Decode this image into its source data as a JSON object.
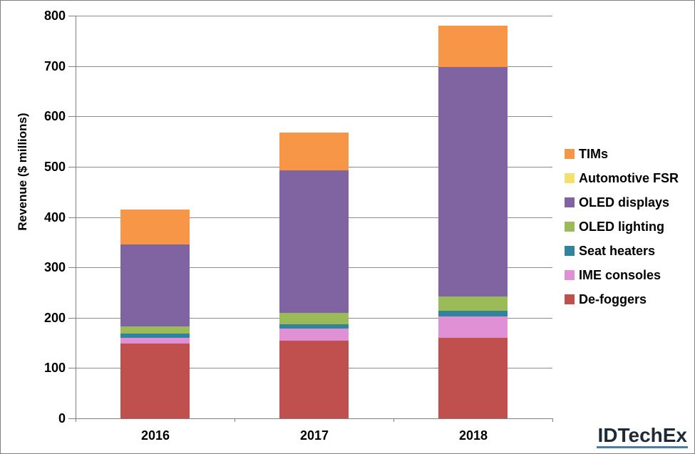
{
  "chart_data": {
    "type": "bar",
    "stacked": true,
    "title": "",
    "xlabel": "",
    "ylabel": "Revenue ($ millions)",
    "categories": [
      "2016",
      "2017",
      "2018"
    ],
    "series": [
      {
        "name": "TIMs",
        "color": "#F79646",
        "values": [
          70,
          75,
          82
        ]
      },
      {
        "name": "Automotive FSR",
        "color": "#F2E16C",
        "values": [
          0,
          0,
          0
        ]
      },
      {
        "name": "OLED displays",
        "color": "#8064A2",
        "values": [
          163,
          284,
          456
        ]
      },
      {
        "name": "OLED lighting",
        "color": "#9BBB59",
        "values": [
          14,
          22,
          28
        ]
      },
      {
        "name": "Seat heaters",
        "color": "#31849B",
        "values": [
          8,
          9,
          11
        ]
      },
      {
        "name": "IME consoles",
        "color": "#E091D5",
        "values": [
          12,
          23,
          43
        ]
      },
      {
        "name": "De-foggers",
        "color": "#C0504D",
        "values": [
          148,
          155,
          160
        ]
      }
    ],
    "series_order_note": "series listed top-of-stack first; stacking bottom-to-top is the reverse order",
    "approx_totals": [
      415,
      568,
      780
    ],
    "ylim": [
      0,
      800
    ],
    "yticks": [
      0,
      100,
      200,
      300,
      400,
      500,
      600,
      700,
      800
    ],
    "grid": "horizontal",
    "legend_position": "right"
  },
  "branding": {
    "logo_text": "IDTechEx"
  },
  "colors": {
    "background": "#FFFFFF",
    "border": "#808080",
    "gridline": "#8C8C8C",
    "axis": "#808080",
    "text": "#000000",
    "logo_text": "#1E2B36",
    "logo_underline": "#4E7CA6"
  }
}
